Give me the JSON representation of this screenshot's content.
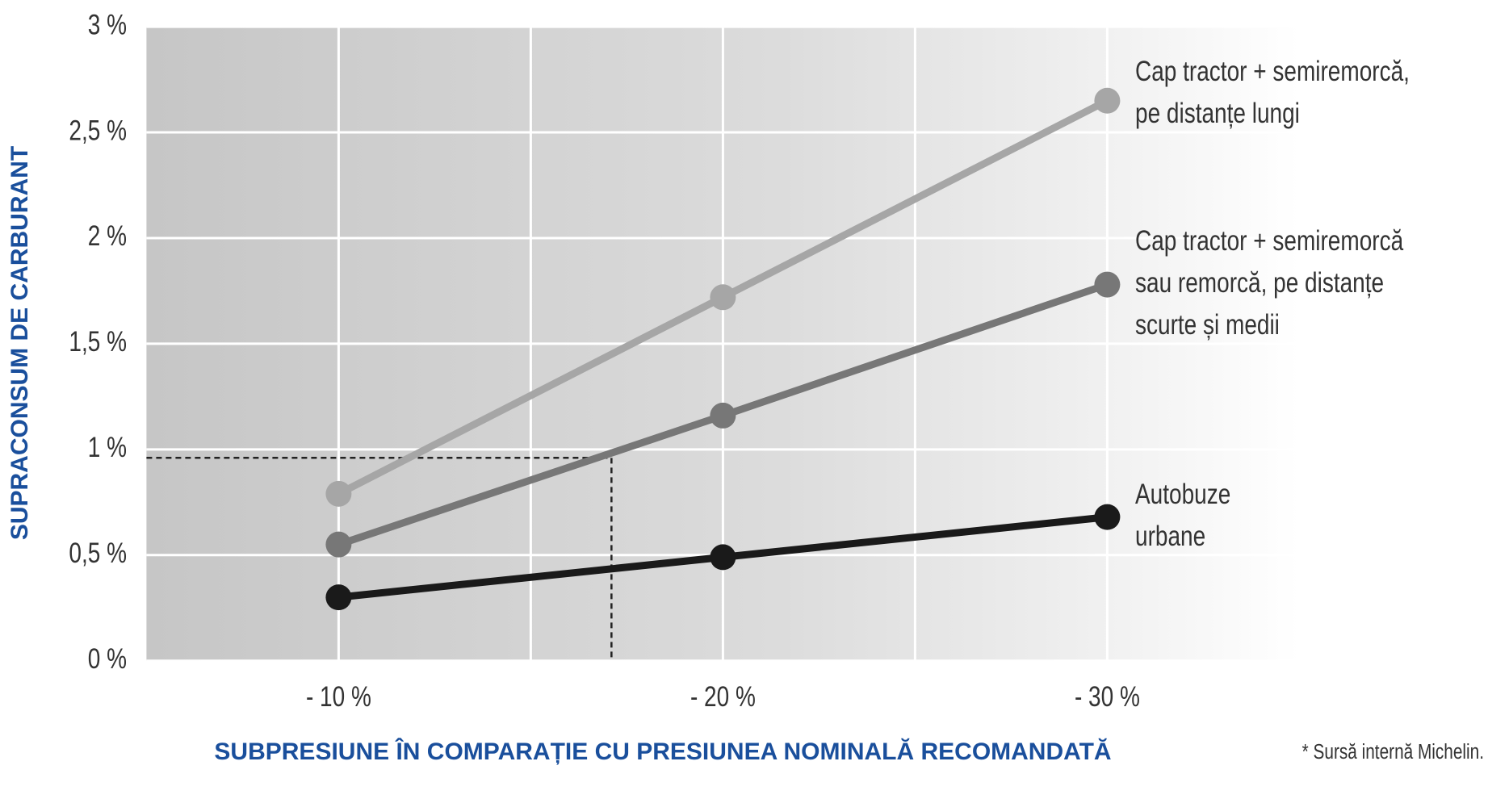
{
  "chart_data": {
    "type": "line",
    "y_label": "SUPRACONSUM DE CARBURANT",
    "x_label": "SUBPRESIUNE ÎN COMPARAȚIE CU PRESIUNEA NOMINALĂ RECOMANDATĂ",
    "footnote": "* Sursă internă Michelin.",
    "x": [
      -10,
      -20,
      -30
    ],
    "xlim": [
      -5,
      -35
    ],
    "xticks": [
      {
        "value": -10,
        "label": "- 10 %"
      },
      {
        "value": -20,
        "label": "- 20 %"
      },
      {
        "value": -30,
        "label": "- 30 %"
      }
    ],
    "xminorticks": [
      -15,
      -25
    ],
    "ylim": [
      0,
      3
    ],
    "yticks": [
      {
        "value": 0,
        "label": "0 %"
      },
      {
        "value": 0.5,
        "label": "0,5 %"
      },
      {
        "value": 1,
        "label": "1 %"
      },
      {
        "value": 1.5,
        "label": "1,5 %"
      },
      {
        "value": 2,
        "label": "2 %"
      },
      {
        "value": 2.5,
        "label": "2,5 %"
      },
      {
        "value": 3,
        "label": "3 %"
      }
    ],
    "grid": true,
    "reference": {
      "x": -17.1,
      "y": 0.96
    },
    "series": [
      {
        "name": [
          "Cap tractor + semiremorcă,",
          "pe distanțe lungi"
        ],
        "color": "#a6a6a6",
        "values": [
          0.79,
          1.72,
          2.65
        ]
      },
      {
        "name": [
          "Cap tractor + semiremorcă",
          "sau remorcă, pe distanțe",
          "scurte și medii"
        ],
        "color": "#777777",
        "values": [
          0.55,
          1.16,
          1.78
        ]
      },
      {
        "name": [
          "Autobuze",
          "urbane"
        ],
        "color": "#1a1a1a",
        "values": [
          0.3,
          0.49,
          0.68
        ]
      }
    ]
  }
}
